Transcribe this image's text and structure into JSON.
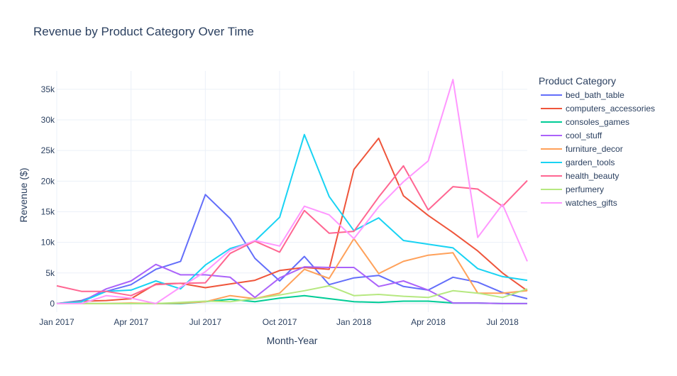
{
  "chart_data": {
    "type": "line",
    "title": "Revenue by Product Category Over Time",
    "xlabel": "Month-Year",
    "ylabel": "Revenue ($)",
    "legend_title": "Product Category",
    "legend_position": "right",
    "grid": true,
    "ylim": [
      -1400,
      38000
    ],
    "xlim": [
      "2017-01",
      "2018-08"
    ],
    "x_tick_labels": [
      "Jan 2017",
      "Apr 2017",
      "Jul 2017",
      "Oct 2017",
      "Jan 2018",
      "Apr 2018",
      "Jul 2018"
    ],
    "x_tick_months": [
      "2017-01",
      "2017-04",
      "2017-07",
      "2017-10",
      "2018-01",
      "2018-04",
      "2018-07"
    ],
    "y_tick_labels": [
      "0",
      "5k",
      "10k",
      "15k",
      "20k",
      "25k",
      "30k",
      "35k"
    ],
    "y_tick_values": [
      0,
      5000,
      10000,
      15000,
      20000,
      25000,
      30000,
      35000
    ],
    "x": [
      "2017-01",
      "2017-02",
      "2017-03",
      "2017-04",
      "2017-05",
      "2017-06",
      "2017-07",
      "2017-08",
      "2017-09",
      "2017-10",
      "2017-11",
      "2017-12",
      "2018-01",
      "2018-02",
      "2018-03",
      "2018-04",
      "2018-05",
      "2018-06",
      "2018-07",
      "2018-08"
    ],
    "series": [
      {
        "name": "bed_bath_table",
        "color": "#636efa",
        "values": [
          0,
          500,
          2000,
          3100,
          5600,
          6900,
          17800,
          13900,
          7400,
          3700,
          7700,
          3100,
          4200,
          4600,
          2800,
          2200,
          4300,
          3500,
          1800,
          800
        ]
      },
      {
        "name": "computers_accessories",
        "color": "#ef553b",
        "values": [
          0,
          400,
          500,
          800,
          3200,
          3300,
          2600,
          3200,
          3800,
          5400,
          5900,
          5600,
          21900,
          27000,
          17600,
          14400,
          11600,
          8600,
          5000,
          2100
        ]
      },
      {
        "name": "consoles_games",
        "color": "#00cc96",
        "values": [
          0,
          0,
          0,
          0,
          0,
          0,
          300,
          700,
          300,
          900,
          1300,
          800,
          300,
          200,
          400,
          400,
          100,
          100,
          0,
          0
        ]
      },
      {
        "name": "cool_stuff",
        "color": "#ab63fa",
        "values": [
          0,
          300,
          2400,
          3700,
          6400,
          4700,
          4700,
          4300,
          1000,
          4200,
          6000,
          5900,
          5900,
          2800,
          3700,
          2200,
          100,
          100,
          0,
          0
        ]
      },
      {
        "name": "furniture_decor",
        "color": "#ffa15a",
        "values": [
          0,
          0,
          0,
          100,
          0,
          100,
          300,
          1300,
          800,
          1700,
          5600,
          4100,
          10600,
          4900,
          6900,
          7900,
          8300,
          1700,
          1700,
          2100
        ]
      },
      {
        "name": "garden_tools",
        "color": "#19d3f3",
        "values": [
          0,
          300,
          2000,
          2200,
          3700,
          2400,
          6300,
          9000,
          10200,
          14100,
          27600,
          17500,
          11900,
          14000,
          10300,
          9700,
          9100,
          5700,
          4400,
          3800
        ]
      },
      {
        "name": "health_beauty",
        "color": "#ff6692",
        "values": [
          2900,
          2000,
          2000,
          1300,
          3100,
          3300,
          3400,
          8200,
          10200,
          8400,
          15200,
          11500,
          11800,
          17400,
          22500,
          15300,
          19100,
          18700,
          15900,
          20100
        ]
      },
      {
        "name": "perfumery",
        "color": "#b6e880",
        "values": [
          0,
          0,
          0,
          0,
          0,
          200,
          400,
          300,
          800,
          1400,
          2100,
          2900,
          1300,
          1500,
          1200,
          1000,
          2100,
          1700,
          1000,
          2400
        ]
      },
      {
        "name": "watches_gifts",
        "color": "#ff97ff",
        "values": [
          0,
          0,
          1300,
          900,
          0,
          2700,
          5200,
          8700,
          10300,
          9400,
          15900,
          14500,
          10600,
          15800,
          19900,
          23300,
          36600,
          10800,
          16200,
          6900
        ]
      }
    ]
  }
}
